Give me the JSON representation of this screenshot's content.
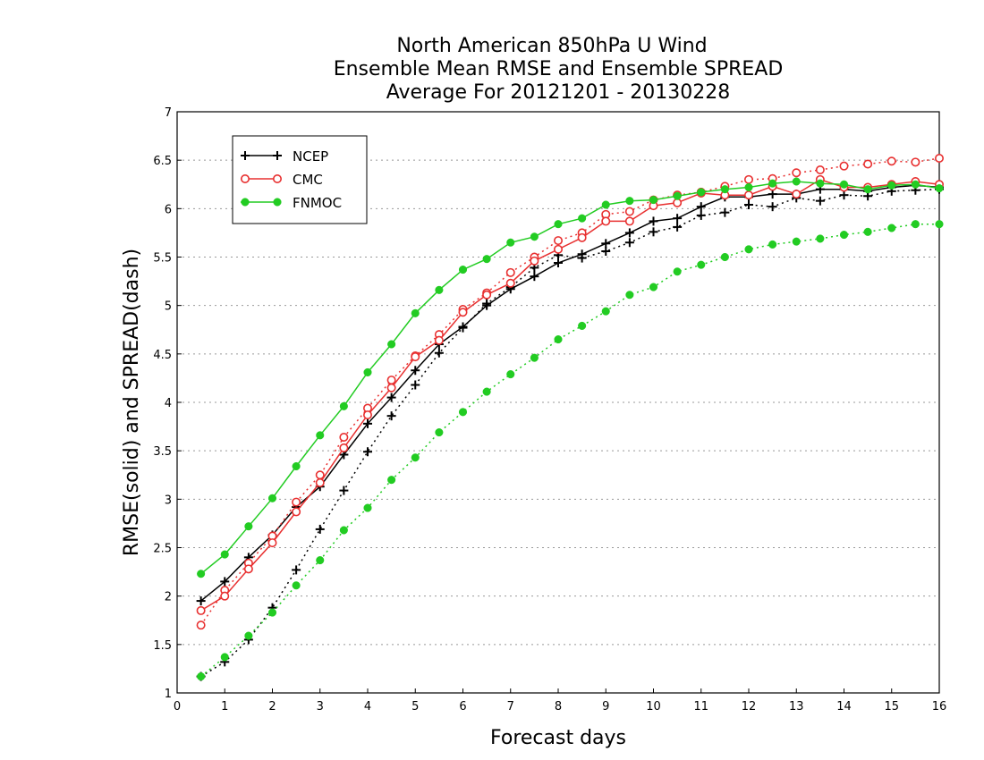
{
  "chart_data": {
    "type": "line",
    "title_lines": [
      "North American 850hPa U Wind",
      "Ensemble Mean RMSE and Ensemble SPREAD",
      "Average For 20121201 - 20130228"
    ],
    "xlabel": "Forecast days",
    "ylabel": "RMSE(solid) and SPREAD(dash)",
    "xlim": [
      0,
      16
    ],
    "ylim": [
      1,
      7
    ],
    "x_ticks": [
      "0",
      "1",
      "2",
      "3",
      "4",
      "5",
      "6",
      "7",
      "8",
      "9",
      "10",
      "11",
      "12",
      "13",
      "14",
      "15",
      "16"
    ],
    "y_ticks": [
      "1",
      "1.5",
      "2",
      "2.5",
      "3",
      "3.5",
      "4",
      "4.5",
      "5",
      "5.5",
      "6",
      "6.5",
      "7"
    ],
    "grid": "horizontal dotted",
    "legend_position": "top-left",
    "x": [
      0.5,
      1,
      1.5,
      2,
      2.5,
      3,
      3.5,
      4,
      4.5,
      5,
      5.5,
      6,
      6.5,
      7,
      7.5,
      8,
      8.5,
      9,
      9.5,
      10,
      10.5,
      11,
      11.5,
      12,
      12.5,
      13,
      13.5,
      14,
      14.5,
      15,
      15.5,
      16
    ],
    "series": [
      {
        "name": "NCEP",
        "color": "#000000",
        "marker": "plus",
        "rmse": [
          1.95,
          2.15,
          2.4,
          2.63,
          2.92,
          3.13,
          3.46,
          3.78,
          4.05,
          4.33,
          4.6,
          4.78,
          5.0,
          5.17,
          5.3,
          5.44,
          5.53,
          5.64,
          5.75,
          5.87,
          5.9,
          6.02,
          6.12,
          6.12,
          6.15,
          6.15,
          6.2,
          6.2,
          6.18,
          6.22,
          6.24,
          6.22
        ],
        "spread": [
          1.17,
          1.32,
          1.55,
          1.88,
          2.27,
          2.69,
          3.09,
          3.49,
          3.86,
          4.18,
          4.51,
          4.77,
          5.02,
          5.19,
          5.39,
          5.52,
          5.49,
          5.56,
          5.65,
          5.76,
          5.81,
          5.93,
          5.96,
          6.04,
          6.02,
          6.11,
          6.08,
          6.14,
          6.13,
          6.18,
          6.19,
          6.2
        ]
      },
      {
        "name": "CMC",
        "color": "#e83030",
        "marker": "open-circle",
        "rmse": [
          1.85,
          2.0,
          2.28,
          2.55,
          2.87,
          3.17,
          3.53,
          3.87,
          4.15,
          4.47,
          4.64,
          4.93,
          5.11,
          5.23,
          5.46,
          5.58,
          5.7,
          5.87,
          5.87,
          6.03,
          6.06,
          6.16,
          6.14,
          6.14,
          6.23,
          6.15,
          6.3,
          6.22,
          6.22,
          6.25,
          6.28,
          6.25
        ],
        "spread": [
          1.7,
          2.06,
          2.34,
          2.62,
          2.97,
          3.25,
          3.64,
          3.94,
          4.23,
          4.48,
          4.7,
          4.96,
          5.13,
          5.34,
          5.5,
          5.67,
          5.75,
          5.94,
          5.97,
          6.09,
          6.14,
          6.17,
          6.23,
          6.3,
          6.31,
          6.37,
          6.4,
          6.44,
          6.46,
          6.49,
          6.48,
          6.52
        ]
      },
      {
        "name": "FNMOC",
        "color": "#22cc22",
        "marker": "filled-circle",
        "rmse": [
          2.23,
          2.43,
          2.72,
          3.01,
          3.34,
          3.66,
          3.96,
          4.31,
          4.6,
          4.92,
          5.16,
          5.37,
          5.48,
          5.65,
          5.71,
          5.84,
          5.9,
          6.04,
          6.08,
          6.09,
          6.13,
          6.17,
          6.2,
          6.22,
          6.26,
          6.28,
          6.26,
          6.25,
          6.2,
          6.24,
          6.25,
          6.21
        ],
        "spread": [
          1.17,
          1.37,
          1.59,
          1.83,
          2.11,
          2.37,
          2.68,
          2.91,
          3.2,
          3.43,
          3.69,
          3.9,
          4.11,
          4.29,
          4.46,
          4.65,
          4.79,
          4.94,
          5.11,
          5.19,
          5.35,
          5.42,
          5.5,
          5.58,
          5.63,
          5.66,
          5.69,
          5.73,
          5.76,
          5.8,
          5.84,
          5.84
        ]
      }
    ]
  }
}
